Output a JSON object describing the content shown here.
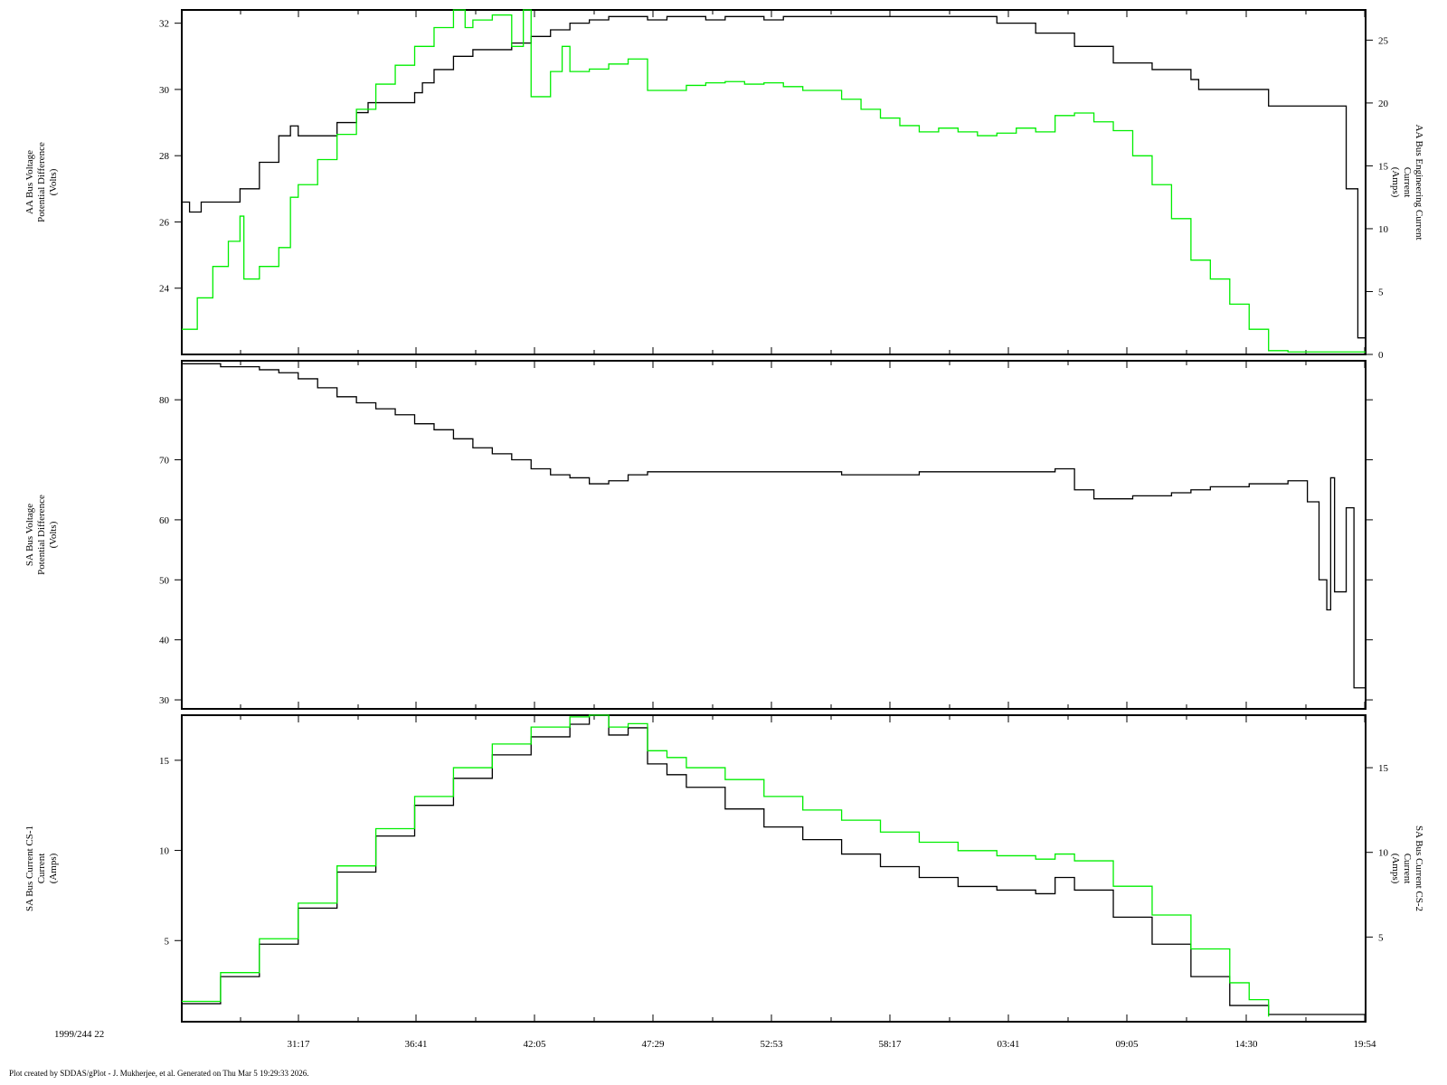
{
  "footer": "Plot created by SDDAS/gPlot - J. Mukherjee, et al.  Generated on Thu Mar 5 19:29:33 2026.",
  "epoch_label": "1999/244 22",
  "time_ticks": [
    "31:17",
    "36:41",
    "42:05",
    "47:29",
    "52:53",
    "58:17",
    "03:41",
    "09:05",
    "14:30",
    "19:54"
  ],
  "colors": {
    "series_black": "#000000",
    "series_green": "#00ee00"
  },
  "chart_data": [
    {
      "type": "line",
      "left_ylabel": [
        "AA Bus Voltage",
        "Potential Difference",
        "(Volts)"
      ],
      "right_ylabel": [
        "AA Bus Engineering Current",
        "Current",
        "(Amps)"
      ],
      "x_range": [
        0,
        305
      ],
      "left_ylim": [
        22,
        32.4
      ],
      "right_ylim": [
        0,
        27.4
      ],
      "left_ticks": [
        24,
        26,
        28,
        30,
        32
      ],
      "right_ticks": [
        0,
        5,
        10,
        15,
        20,
        25
      ],
      "series": [
        {
          "axis": "left",
          "color": "#000000",
          "x": [
            0,
            2,
            5,
            10,
            15,
            20,
            25,
            28,
            30,
            35,
            40,
            45,
            48,
            55,
            60,
            62,
            65,
            70,
            75,
            80,
            85,
            90,
            95,
            100,
            105,
            110,
            115,
            120,
            125,
            130,
            135,
            140,
            145,
            150,
            155,
            160,
            170,
            180,
            190,
            200,
            210,
            220,
            230,
            240,
            250,
            260,
            262,
            270,
            280,
            290,
            300,
            303,
            305
          ],
          "y": [
            26.6,
            26.3,
            26.6,
            26.6,
            27.0,
            27.8,
            28.6,
            28.9,
            28.6,
            28.6,
            29.0,
            29.3,
            29.6,
            29.6,
            29.9,
            30.2,
            30.6,
            31.0,
            31.2,
            31.2,
            31.4,
            31.6,
            31.8,
            32.0,
            32.1,
            32.2,
            32.2,
            32.1,
            32.2,
            32.2,
            32.1,
            32.2,
            32.2,
            32.1,
            32.2,
            32.2,
            32.2,
            32.2,
            32.2,
            32.2,
            32.0,
            31.7,
            31.3,
            30.8,
            30.6,
            30.3,
            30.0,
            30.0,
            29.5,
            29.5,
            27.0,
            22.5,
            22.0
          ]
        },
        {
          "axis": "right",
          "color": "#00ee00",
          "x": [
            0,
            4,
            8,
            12,
            15,
            16,
            20,
            25,
            28,
            30,
            35,
            40,
            45,
            50,
            55,
            60,
            65,
            70,
            73,
            75,
            80,
            85,
            88,
            90,
            95,
            98,
            100,
            105,
            110,
            115,
            120,
            125,
            130,
            135,
            140,
            145,
            150,
            155,
            160,
            170,
            175,
            180,
            185,
            190,
            195,
            200,
            205,
            210,
            215,
            220,
            225,
            230,
            235,
            240,
            245,
            250,
            255,
            260,
            265,
            270,
            275,
            280,
            285,
            290,
            292,
            295,
            300,
            305
          ],
          "y": [
            2.0,
            4.5,
            7.0,
            9.0,
            11.0,
            6.0,
            7.0,
            8.5,
            12.5,
            13.5,
            15.5,
            17.5,
            19.5,
            21.5,
            23.0,
            24.5,
            26.0,
            27.4,
            26.0,
            26.6,
            27.0,
            24.5,
            27.4,
            20.5,
            22.5,
            24.5,
            22.5,
            22.7,
            23.1,
            23.5,
            21.0,
            21.0,
            21.4,
            21.6,
            21.7,
            21.5,
            21.6,
            21.3,
            21.0,
            20.3,
            19.5,
            18.8,
            18.2,
            17.7,
            18.0,
            17.7,
            17.4,
            17.6,
            18.0,
            17.7,
            19.0,
            19.2,
            18.5,
            17.8,
            15.8,
            13.5,
            10.8,
            7.5,
            6.0,
            4.0,
            2.0,
            0.3,
            0.2,
            0.2,
            0.2,
            0.2,
            0.2,
            0.2
          ]
        }
      ]
    },
    {
      "type": "line",
      "left_ylabel": [
        "SA Bus Voltage",
        "Potential Difference",
        "(Volts)"
      ],
      "x_range": [
        0,
        305
      ],
      "left_ylim": [
        28.5,
        86.5
      ],
      "left_ticks": [
        30,
        40,
        50,
        60,
        70,
        80
      ],
      "series": [
        {
          "axis": "left",
          "color": "#000000",
          "x": [
            0,
            10,
            20,
            25,
            30,
            35,
            40,
            45,
            50,
            55,
            60,
            65,
            70,
            75,
            80,
            85,
            90,
            95,
            100,
            105,
            110,
            115,
            120,
            125,
            130,
            140,
            150,
            160,
            170,
            180,
            190,
            200,
            210,
            220,
            225,
            230,
            235,
            240,
            245,
            250,
            255,
            260,
            265,
            270,
            275,
            280,
            285,
            290,
            293,
            295,
            296,
            297,
            300,
            302,
            305
          ],
          "y": [
            86,
            85.5,
            85,
            84.5,
            83.5,
            82,
            80.5,
            79.5,
            78.5,
            77.5,
            76,
            75,
            73.5,
            72,
            71,
            70,
            68.5,
            67.5,
            67,
            66,
            66.5,
            67.5,
            68,
            68,
            68,
            68,
            68,
            68,
            67.5,
            67.5,
            68,
            68,
            68,
            68,
            68.5,
            65,
            63.5,
            63.5,
            64,
            64,
            64.5,
            65,
            65.5,
            65.5,
            66,
            66,
            66.5,
            63,
            50,
            45,
            67,
            48,
            62,
            32,
            29
          ]
        }
      ]
    },
    {
      "type": "line",
      "left_ylabel": [
        "SA Bus Current CS-1",
        "Current",
        "(Amps)"
      ],
      "right_ylabel": [
        "SA Bus Current CS-2",
        "Current",
        "(Amps)"
      ],
      "x_range": [
        0,
        305
      ],
      "left_ylim": [
        0.5,
        17.5
      ],
      "right_ylim": [
        0,
        18.1
      ],
      "left_ticks": [
        5,
        10,
        15
      ],
      "right_ticks": [
        5,
        10,
        15
      ],
      "series": [
        {
          "axis": "left",
          "color": "#000000",
          "name": "CS-1",
          "x": [
            0,
            10,
            20,
            30,
            40,
            50,
            60,
            70,
            80,
            90,
            100,
            105,
            110,
            115,
            120,
            125,
            130,
            140,
            150,
            160,
            170,
            180,
            190,
            200,
            210,
            220,
            225,
            230,
            240,
            250,
            260,
            270,
            280,
            290,
            300,
            305
          ],
          "y": [
            1.5,
            3.0,
            4.8,
            6.8,
            8.8,
            10.8,
            12.5,
            14.0,
            15.3,
            16.3,
            17.0,
            17.5,
            16.4,
            16.8,
            14.8,
            14.2,
            13.5,
            12.3,
            11.3,
            10.6,
            9.8,
            9.1,
            8.5,
            8.0,
            7.8,
            7.6,
            8.5,
            7.8,
            6.3,
            4.8,
            3.0,
            1.4,
            0.9,
            0.9,
            0.9,
            0.9
          ]
        },
        {
          "axis": "right",
          "color": "#00ee00",
          "name": "CS-2",
          "x": [
            0,
            10,
            20,
            30,
            40,
            50,
            60,
            70,
            80,
            90,
            100,
            105,
            110,
            115,
            120,
            125,
            130,
            140,
            150,
            160,
            170,
            180,
            190,
            200,
            210,
            220,
            225,
            230,
            240,
            250,
            260,
            270,
            275,
            280
          ],
          "y": [
            1.2,
            2.9,
            4.9,
            7.0,
            9.2,
            11.4,
            13.3,
            15.0,
            16.4,
            17.4,
            18.0,
            18.1,
            17.4,
            17.6,
            16.0,
            15.6,
            15.0,
            14.3,
            13.3,
            12.5,
            11.9,
            11.2,
            10.6,
            10.1,
            9.8,
            9.6,
            9.9,
            9.5,
            8.0,
            6.3,
            4.3,
            2.3,
            1.3,
            0.3
          ]
        }
      ]
    }
  ]
}
